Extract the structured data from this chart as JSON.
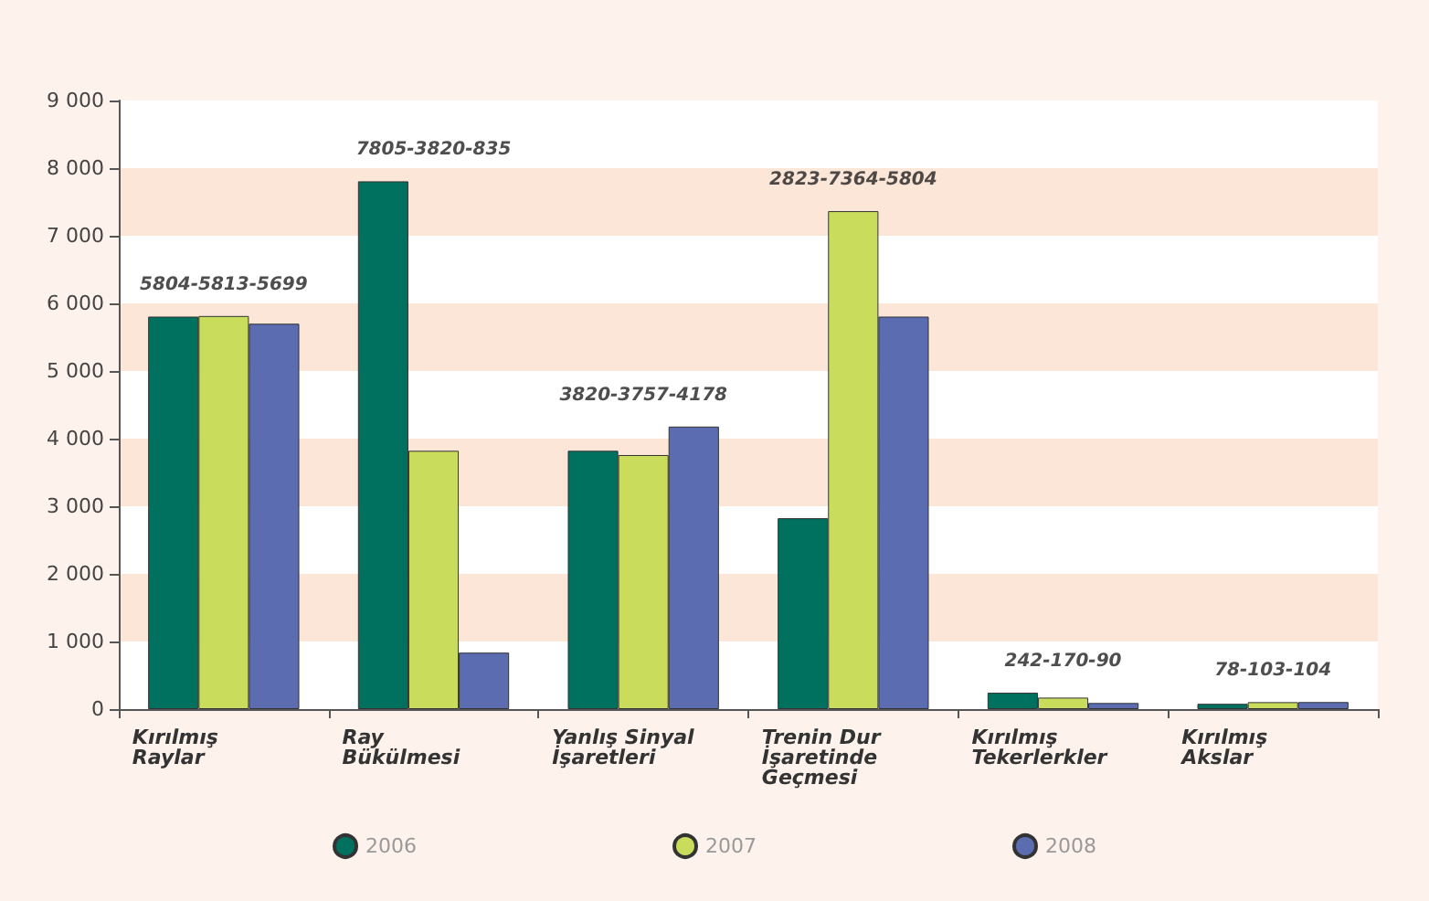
{
  "chart_data": {
    "type": "bar",
    "categories": [
      "Kırılmış\nRaylar",
      "Ray\nBükülmesi",
      "Yanlış Sinyal\nİşaretleri",
      "Trenin Dur\nİşaretinde\nGeçmesi",
      "Kırılmış\nTekerlerkler",
      "Kırılmış\nAkslar"
    ],
    "series": [
      {
        "name": "2006",
        "color": "#00705f",
        "values": [
          5804,
          7805,
          3820,
          2823,
          242,
          78
        ]
      },
      {
        "name": "2007",
        "color": "#c9dc5c",
        "values": [
          5813,
          3820,
          3757,
          7364,
          170,
          103
        ]
      },
      {
        "name": "2008",
        "color": "#5b6db0",
        "values": [
          5699,
          835,
          4178,
          5804,
          90,
          104
        ]
      }
    ],
    "ylim": [
      0,
      9000
    ],
    "yticks": [
      {
        "value": 0,
        "label": "0"
      },
      {
        "value": 1000,
        "label": "1 000"
      },
      {
        "value": 2000,
        "label": "2 000"
      },
      {
        "value": 3000,
        "label": "3 000"
      },
      {
        "value": 4000,
        "label": "4 000"
      },
      {
        "value": 5000,
        "label": "5 000"
      },
      {
        "value": 6000,
        "label": "6 000"
      },
      {
        "value": 7000,
        "label": "7 000"
      },
      {
        "value": 8000,
        "label": "8 000"
      },
      {
        "value": 9000,
        "label": "9 000"
      }
    ],
    "annotations": [
      "5804-5813-5699",
      "7805-3820-835",
      "3820-3757-4178",
      "2823-7364-5804",
      "242-170-90",
      "78-103-104"
    ],
    "legend": "bottom"
  }
}
